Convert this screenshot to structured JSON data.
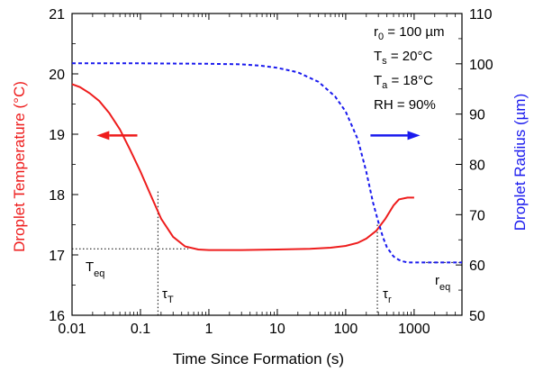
{
  "chart_data": {
    "type": "line",
    "title": "",
    "xlabel": "Time Since Formation (s)",
    "ylabel_left": "Droplet Temperature (°C)",
    "ylabel_right": "Droplet Radius (µm)",
    "x_scale": "log",
    "xlim": [
      0.01,
      5000
    ],
    "x_ticks": [
      "0.01",
      "0.1",
      "1",
      "10",
      "100",
      "1000"
    ],
    "ylim_left": [
      16,
      21
    ],
    "y_ticks_left": [
      "16",
      "17",
      "18",
      "19",
      "20",
      "21"
    ],
    "ylim_right": [
      50,
      110
    ],
    "y_ticks_right": [
      "50",
      "60",
      "70",
      "80",
      "90",
      "100",
      "110"
    ],
    "grid": false,
    "colors": {
      "temperature": "#ee1c1c",
      "radius": "#1a1aee",
      "guide": "#000000"
    },
    "series": [
      {
        "axis": "left",
        "style": "solid",
        "x": [
          0.01,
          0.013,
          0.018,
          0.025,
          0.035,
          0.05,
          0.07,
          0.1,
          0.14,
          0.2,
          0.3,
          0.45,
          0.7,
          1,
          1.5,
          3,
          10,
          30,
          60,
          100,
          150,
          200,
          280,
          380,
          500,
          600,
          800,
          1000
        ],
        "values": [
          19.83,
          19.78,
          19.68,
          19.55,
          19.35,
          19.08,
          18.75,
          18.38,
          18.0,
          17.6,
          17.3,
          17.14,
          17.09,
          17.08,
          17.08,
          17.08,
          17.09,
          17.1,
          17.12,
          17.15,
          17.2,
          17.27,
          17.4,
          17.6,
          17.82,
          17.92,
          17.95,
          17.95
        ]
      },
      {
        "axis": "right",
        "style": "dashed",
        "x": [
          0.01,
          0.1,
          1,
          3,
          6,
          10,
          20,
          40,
          70,
          100,
          150,
          200,
          250,
          300,
          350,
          400,
          500,
          600,
          700,
          800,
          1000,
          1300,
          5000
        ],
        "values": [
          100.1,
          100.1,
          100.0,
          99.9,
          99.6,
          99.2,
          98.3,
          96.4,
          93.5,
          90.5,
          85.0,
          78.5,
          72.5,
          68.5,
          65.5,
          63.5,
          61.7,
          61.0,
          60.7,
          60.5,
          60.5,
          60.5,
          60.5
        ]
      }
    ],
    "annotations": {
      "r0_main": "r",
      "r0_sub": "0",
      "r0_rest": " = 100 µm",
      "Ts_main": "T",
      "Ts_sub": "s",
      "Ts_rest": " = 20°C",
      "Ta_main": "T",
      "Ta_sub": "a",
      "Ta_rest": " = 18°C",
      "rh": "RH = 90%",
      "teq_main": "T",
      "teq_sub": "eq",
      "req_main": "r",
      "req_sub": "eq",
      "tauT_main": "τ",
      "tauT_sub": "T",
      "taur_main": "τ",
      "taur_sub": "r"
    },
    "markers": {
      "tau_T_x": 0.18,
      "T_eq": 17.1,
      "tau_r_x": 290,
      "r_eq": 60.5
    }
  }
}
